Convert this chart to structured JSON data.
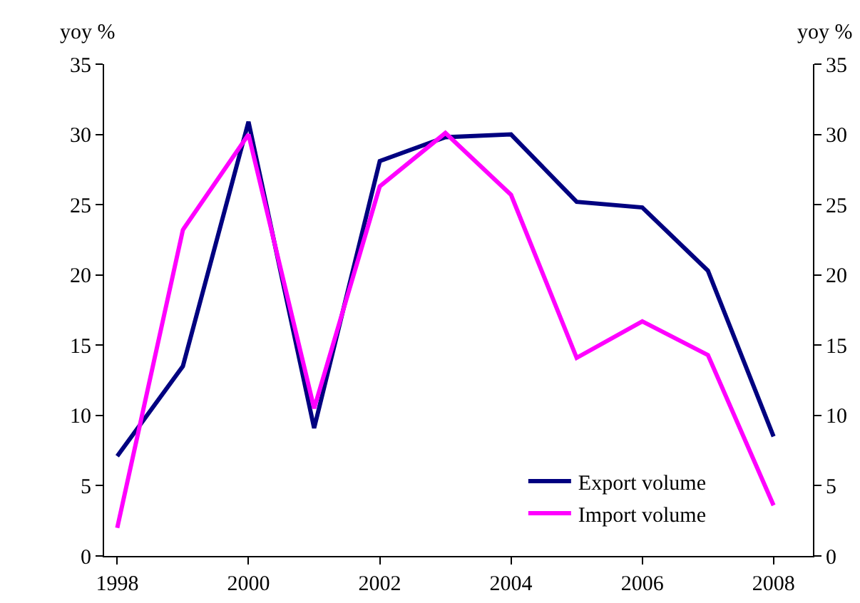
{
  "chart_data": {
    "type": "line",
    "ylabel": "yoy %",
    "y2label": "yoy %",
    "x": [
      1998,
      1999,
      2000,
      2001,
      2002,
      2003,
      2004,
      2005,
      2006,
      2007,
      2008
    ],
    "series": [
      {
        "name": "Export volume",
        "color": "#000080",
        "values": [
          7.1,
          13.5,
          30.9,
          9.1,
          28.1,
          29.8,
          30.0,
          25.2,
          24.8,
          20.3,
          8.5
        ]
      },
      {
        "name": "Import volume",
        "color": "#ff00ff",
        "values": [
          2.0,
          23.2,
          30.0,
          10.5,
          26.3,
          30.1,
          25.7,
          14.1,
          16.7,
          14.3,
          3.6
        ]
      }
    ],
    "xlim": [
      1997.8,
      2008.6
    ],
    "xticks": [
      1998,
      2000,
      2002,
      2004,
      2006,
      2008
    ],
    "ylim": [
      0,
      35
    ],
    "yticks": [
      0,
      5,
      10,
      15,
      20,
      25,
      30,
      35
    ],
    "y2lim": [
      0,
      35
    ],
    "y2ticks": [
      0,
      5,
      10,
      15,
      20,
      25,
      30,
      35
    ],
    "grid": false,
    "legend": "bottom right",
    "marker": "none",
    "line_style": "solid"
  }
}
